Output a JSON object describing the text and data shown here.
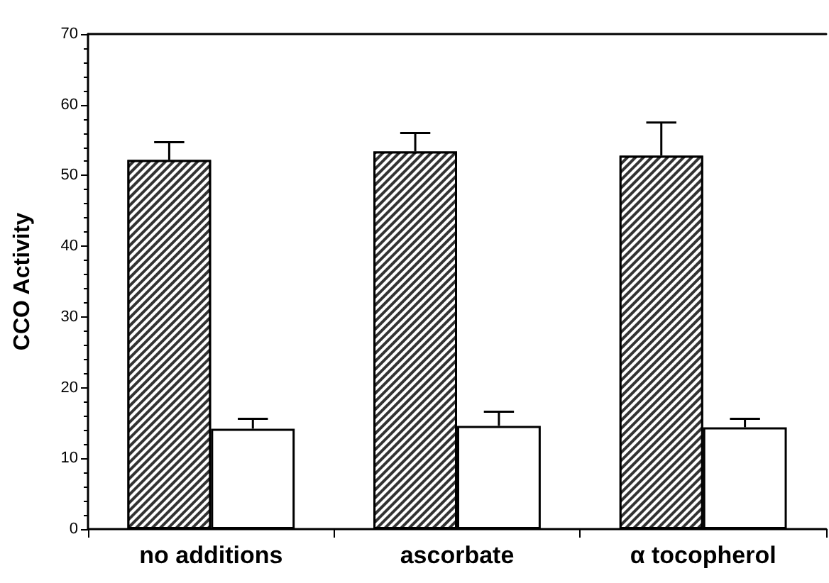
{
  "chart_data": {
    "type": "bar",
    "ylabel": "CCO Activity",
    "categories": [
      "no additions",
      "ascorbate",
      "α tocopherol"
    ],
    "series": [
      {
        "color": "#333333",
        "values": [
          52.2,
          53.4,
          52.8
        ],
        "errors": [
          [
            52.2,
            54.7
          ],
          [
            53.4,
            56.0
          ],
          [
            52.8,
            57.5
          ]
        ]
      },
      {
        "color": "#ffffff",
        "values": [
          14.2,
          14.6,
          14.4
        ],
        "errors": [
          [
            14.2,
            15.6
          ],
          [
            14.6,
            16.6
          ],
          [
            14.4,
            15.6
          ]
        ]
      }
    ],
    "ylim": [
      0,
      70
    ],
    "yticks": [
      0,
      10,
      20,
      30,
      40,
      50,
      60,
      70
    ],
    "grid": false
  }
}
